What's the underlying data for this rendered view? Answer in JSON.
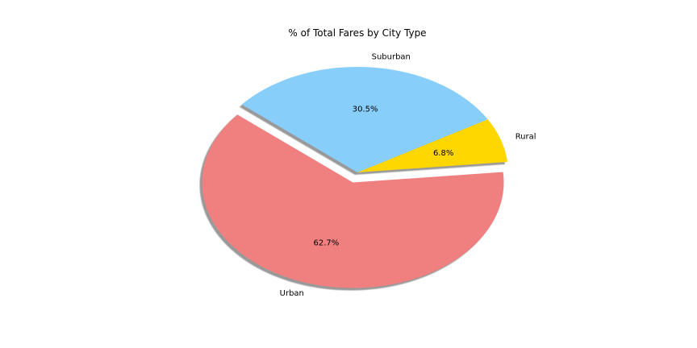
{
  "chart_data": {
    "type": "pie",
    "title": "% of Total Fares by City Type",
    "series": [
      {
        "name": "Fares",
        "labels": [
          "Urban",
          "Rural",
          "Suburban"
        ],
        "values": [
          62.7,
          6.8,
          30.5
        ],
        "percent_labels": [
          "62.7%",
          "6.8%",
          "30.5%"
        ],
        "colors": [
          "#f08080",
          "#ffd700",
          "#87cefa"
        ],
        "explode": [
          0.1,
          0,
          0
        ]
      }
    ],
    "shadow": true,
    "start_angle_deg": 140
  }
}
